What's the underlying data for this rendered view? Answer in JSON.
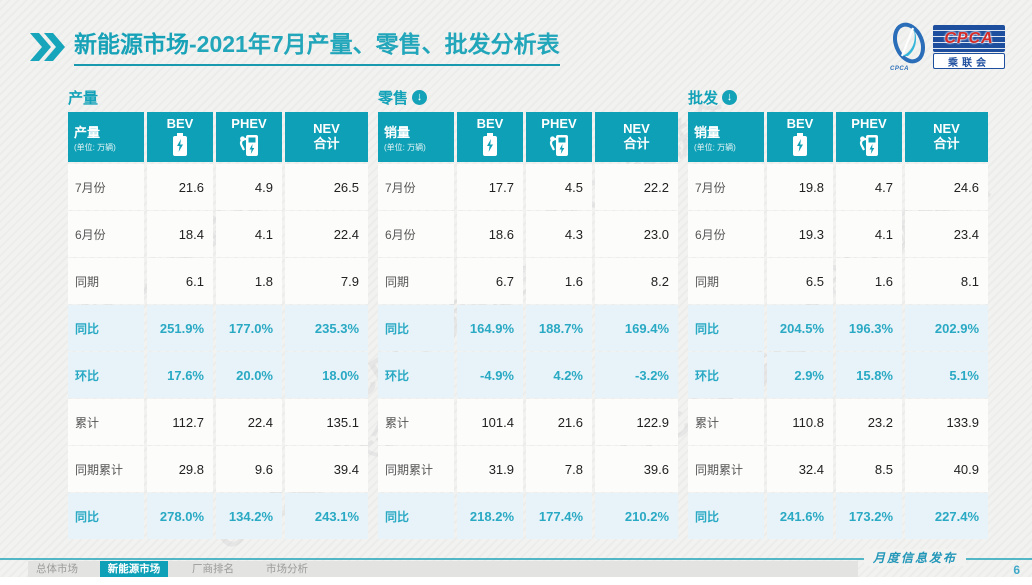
{
  "header": {
    "title_main": "新能源市场",
    "title_rest": "-2021年7月产量、零售、批发分析表"
  },
  "logo": {
    "acronym": "CPCA",
    "cn_name": "乘联会",
    "sub_text": "CPCA"
  },
  "columns": {
    "bev": "BEV",
    "phev": "PHEV",
    "nev1": "NEV",
    "nev2": "合计"
  },
  "tables": [
    {
      "section_label": "产量",
      "label_header": "产量",
      "unit": "(单位: 万辆)",
      "rows": [
        {
          "label": "7月份",
          "values": [
            "21.6",
            "4.9",
            "26.5"
          ],
          "highlight": false
        },
        {
          "label": "6月份",
          "values": [
            "18.4",
            "4.1",
            "22.4"
          ],
          "highlight": false
        },
        {
          "label": "同期",
          "values": [
            "6.1",
            "1.8",
            "7.9"
          ],
          "highlight": false
        },
        {
          "label": "同比",
          "values": [
            "251.9%",
            "177.0%",
            "235.3%"
          ],
          "highlight": true
        },
        {
          "label": "环比",
          "values": [
            "17.6%",
            "20.0%",
            "18.0%"
          ],
          "highlight": true
        },
        {
          "label": "累计",
          "values": [
            "112.7",
            "22.4",
            "135.1"
          ],
          "highlight": false
        },
        {
          "label": "同期累计",
          "values": [
            "29.8",
            "9.6",
            "39.4"
          ],
          "highlight": false
        },
        {
          "label": "同比",
          "values": [
            "278.0%",
            "134.2%",
            "243.1%"
          ],
          "highlight": true
        }
      ]
    },
    {
      "section_label": "零售",
      "label_header": "销量",
      "unit": "(单位: 万辆)",
      "rows": [
        {
          "label": "7月份",
          "values": [
            "17.7",
            "4.5",
            "22.2"
          ],
          "highlight": false
        },
        {
          "label": "6月份",
          "values": [
            "18.6",
            "4.3",
            "23.0"
          ],
          "highlight": false
        },
        {
          "label": "同期",
          "values": [
            "6.7",
            "1.6",
            "8.2"
          ],
          "highlight": false
        },
        {
          "label": "同比",
          "values": [
            "164.9%",
            "188.7%",
            "169.4%"
          ],
          "highlight": true
        },
        {
          "label": "环比",
          "values": [
            "-4.9%",
            "4.2%",
            "-3.2%"
          ],
          "highlight": true
        },
        {
          "label": "累计",
          "values": [
            "101.4",
            "21.6",
            "122.9"
          ],
          "highlight": false
        },
        {
          "label": "同期累计",
          "values": [
            "31.9",
            "7.8",
            "39.6"
          ],
          "highlight": false
        },
        {
          "label": "同比",
          "values": [
            "218.2%",
            "177.4%",
            "210.2%"
          ],
          "highlight": true
        }
      ]
    },
    {
      "section_label": "批发",
      "label_header": "销量",
      "unit": "(单位: 万辆)",
      "rows": [
        {
          "label": "7月份",
          "values": [
            "19.8",
            "4.7",
            "24.6"
          ],
          "highlight": false
        },
        {
          "label": "6月份",
          "values": [
            "19.3",
            "4.1",
            "23.4"
          ],
          "highlight": false
        },
        {
          "label": "同期",
          "values": [
            "6.5",
            "1.6",
            "8.1"
          ],
          "highlight": false
        },
        {
          "label": "同比",
          "values": [
            "204.5%",
            "196.3%",
            "202.9%"
          ],
          "highlight": true
        },
        {
          "label": "环比",
          "values": [
            "2.9%",
            "15.8%",
            "5.1%"
          ],
          "highlight": true
        },
        {
          "label": "累计",
          "values": [
            "110.8",
            "23.2",
            "133.9"
          ],
          "highlight": false
        },
        {
          "label": "同期累计",
          "values": [
            "32.4",
            "8.5",
            "40.9"
          ],
          "highlight": false
        },
        {
          "label": "同比",
          "values": [
            "241.6%",
            "173.2%",
            "227.4%"
          ],
          "highlight": true
        }
      ]
    }
  ],
  "tabs": [
    {
      "label": "总体市场",
      "active": false
    },
    {
      "label": "新能源市场",
      "active": true
    },
    {
      "label": "厂商排名",
      "active": false
    },
    {
      "label": "市场分析",
      "active": false
    }
  ],
  "footer": {
    "release_label": "月度信息发布",
    "page_number": "6"
  },
  "watermark_text": "CPCA乘联会",
  "colors": {
    "teal_header": "#0DA0B6",
    "title_teal": "#17A2B8",
    "highlight_bg": "#E7F3F8",
    "highlight_text": "#2AA9C4",
    "logo_blue": "#1E4F9E",
    "logo_red": "#D42B28"
  }
}
